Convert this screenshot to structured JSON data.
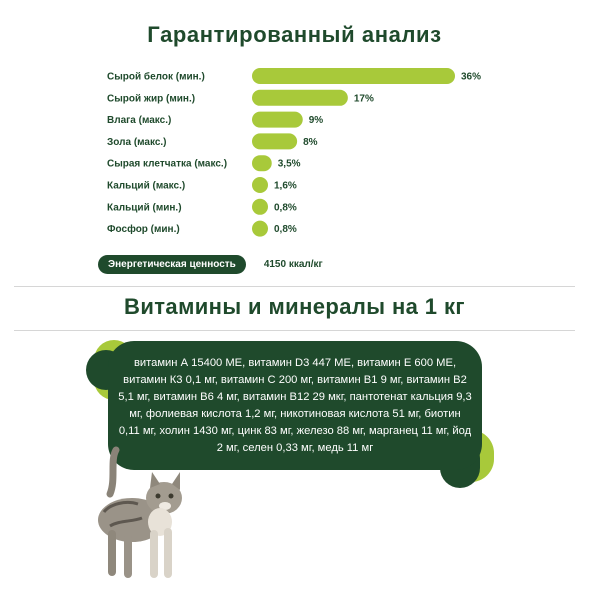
{
  "header": {
    "title": "Гарантированный анализ"
  },
  "chart_data": {
    "type": "bar",
    "orientation": "horizontal",
    "categories": [
      "Сырой белок (мин.)",
      "Сырой жир (мин.)",
      "Влага (макс.)",
      "Зола (макс.)",
      "Сырая клетчатка (макс.)",
      "Кальций (макс.)",
      "Кальций (мин.)",
      "Фосфор (мин.)"
    ],
    "values": [
      36,
      17,
      9,
      8,
      3.5,
      1.6,
      0.8,
      0.8
    ],
    "value_labels": [
      "36%",
      "17%",
      "9%",
      "8%",
      "3,5%",
      "1,6%",
      "0,8%",
      "0,8%"
    ],
    "bar_color": "#a8c93a",
    "grid": false
  },
  "energy": {
    "label": "Энергетическая ценность",
    "value": "4150 ккал/кг"
  },
  "vitamins": {
    "title": "Витамины и минералы на 1 кг",
    "text": "витамин А 15400 МЕ, витамин D3 447 МЕ, витамин Е 600 МЕ, витамин К3 0,1 мг, витамин С 200 мг, витамин В1 9 мг, витамин В2 5,1 мг, витамин В6 4 мг, витамин В12 29 мкг, пантотенат кальция 9,3 мг, фолиевая кислота 1,2 мг, никотиновая кислота 51 мг, биотин 0,11 мг, холин 1430 мг, цинк 83 мг, железо 88 мг, марганец 11 мг, йод 2 мг, селен 0,33 мг, медь 11 мг"
  },
  "colors": {
    "dark_green": "#1f4a2c",
    "lime": "#a8c93a"
  }
}
